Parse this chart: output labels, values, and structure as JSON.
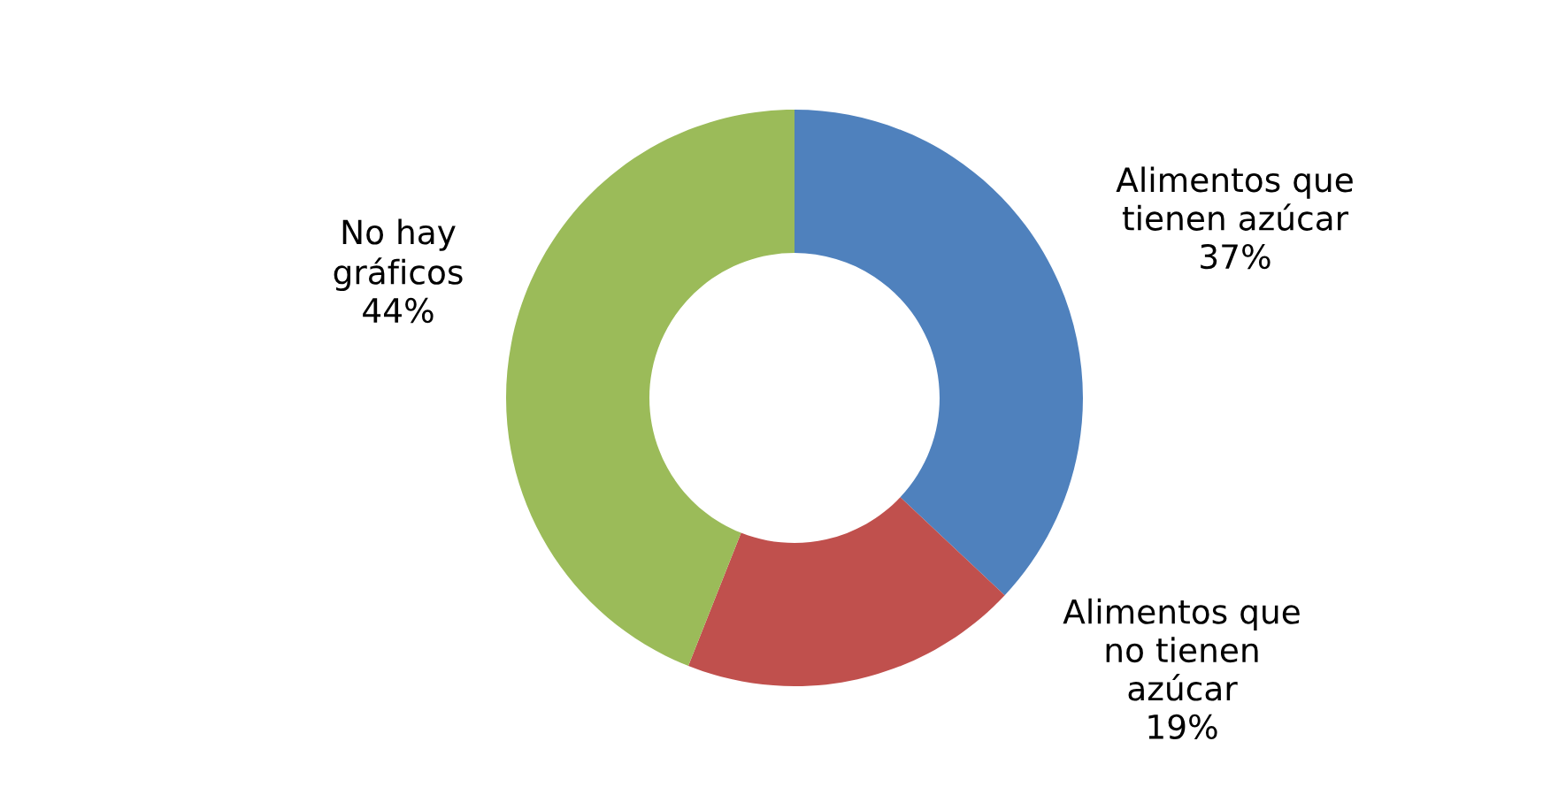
{
  "chart_data": {
    "type": "donut",
    "categories": [
      "Alimentos que\ntienen azúcar",
      "Alimentos que\nno tienen\nazúcar",
      "No hay\ngráficos"
    ],
    "values": [
      37,
      19,
      44
    ],
    "colors": [
      "#4f81bd",
      "#c0504d",
      "#9bbb59"
    ],
    "value_labels": [
      "37%",
      "19%",
      "44%"
    ]
  }
}
